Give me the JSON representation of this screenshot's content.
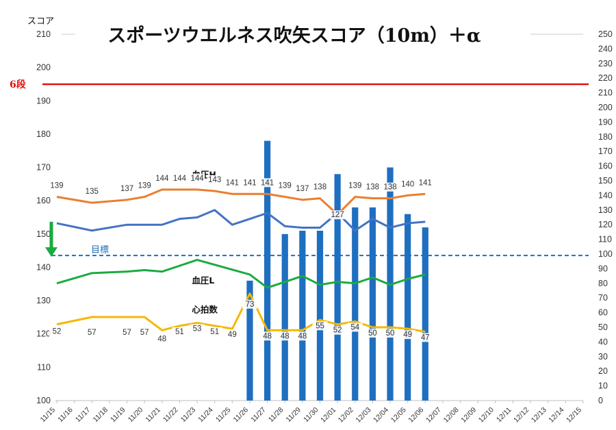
{
  "chart_data": {
    "type": "bar+line",
    "title": "スポーツウエルネス吹矢スコア（10m）＋α",
    "y_left_unit": "スコア",
    "y_left_range": [
      100,
      210
    ],
    "y_left_ticks": [
      100,
      110,
      120,
      130,
      140,
      150,
      160,
      170,
      180,
      190,
      200,
      210
    ],
    "y_right_range": [
      0,
      250
    ],
    "y_right_ticks": [
      0,
      10,
      20,
      30,
      40,
      50,
      60,
      70,
      80,
      90,
      100,
      110,
      120,
      130,
      140,
      150,
      160,
      170,
      180,
      190,
      200,
      210,
      220,
      230,
      240,
      250
    ],
    "categories": [
      "11/15",
      "11/16",
      "11/17",
      "11/18",
      "11/19",
      "11/20",
      "11/21",
      "11/22",
      "11/23",
      "11/24",
      "11/25",
      "11/26",
      "11/27",
      "11/28",
      "11/29",
      "11/30",
      "12/01",
      "12/02",
      "12/03",
      "12/04",
      "12/05",
      "12/06",
      "12/07",
      "12/08",
      "12/09",
      "12/10",
      "12/11",
      "12/12",
      "12/13",
      "12/14",
      "12/15"
    ],
    "score_bars": {
      "color": "#1f6fc0",
      "points": [
        {
          "x": "11/26",
          "y": 136
        },
        {
          "x": "11/27",
          "y": 178
        },
        {
          "x": "11/28",
          "y": 150
        },
        {
          "x": "11/29",
          "y": 151
        },
        {
          "x": "11/30",
          "y": 151
        },
        {
          "x": "12/01",
          "y": 168
        },
        {
          "x": "12/02",
          "y": 158
        },
        {
          "x": "12/03",
          "y": 158
        },
        {
          "x": "12/04",
          "y": 170
        },
        {
          "x": "12/05",
          "y": 156
        },
        {
          "x": "12/06",
          "y": 152
        }
      ]
    },
    "reference_lines": [
      {
        "label": "6段",
        "axis": "left",
        "value": 195,
        "color": "#e01010",
        "style": "solid"
      },
      {
        "label": "目標",
        "axis": "right",
        "value": 99,
        "color": "#1f6fb8",
        "style": "dashed"
      }
    ],
    "series": [
      {
        "name": "血圧H",
        "axis": "right",
        "color": "#ed7d31",
        "show_labels": true,
        "points": [
          {
            "x": "11/15",
            "y": 139,
            "label": "139"
          },
          {
            "x": "11/17",
            "y": 135,
            "label": "135"
          },
          {
            "x": "11/19",
            "y": 137,
            "label": "137"
          },
          {
            "x": "11/20",
            "y": 139,
            "label": "139"
          },
          {
            "x": "11/21",
            "y": 144,
            "label": "144"
          },
          {
            "x": "11/22",
            "y": 144,
            "label": "144"
          },
          {
            "x": "11/23",
            "y": 144,
            "label": "144"
          },
          {
            "x": "11/24",
            "y": 143,
            "label": "143"
          },
          {
            "x": "11/25",
            "y": 141,
            "label": "141"
          },
          {
            "x": "11/26",
            "y": 141,
            "label": "141"
          },
          {
            "x": "11/27",
            "y": 141,
            "label": "141"
          },
          {
            "x": "11/28",
            "y": 139,
            "label": "139"
          },
          {
            "x": "11/29",
            "y": 137,
            "label": "137"
          },
          {
            "x": "11/30",
            "y": 138,
            "label": "138"
          },
          {
            "x": "12/01",
            "y": 127,
            "label": "127"
          },
          {
            "x": "12/02",
            "y": 139,
            "label": "139"
          },
          {
            "x": "12/03",
            "y": 138,
            "label": "138"
          },
          {
            "x": "12/04",
            "y": 138,
            "label": "138"
          },
          {
            "x": "12/05",
            "y": 140,
            "label": "140"
          },
          {
            "x": "12/06",
            "y": 141,
            "label": "141"
          }
        ]
      },
      {
        "name": "",
        "axis": "right",
        "color": "#4472c4",
        "show_labels": false,
        "points": [
          {
            "x": "11/15",
            "y": 121
          },
          {
            "x": "11/17",
            "y": 116
          },
          {
            "x": "11/19",
            "y": 120
          },
          {
            "x": "11/20",
            "y": 120
          },
          {
            "x": "11/21",
            "y": 120
          },
          {
            "x": "11/22",
            "y": 124
          },
          {
            "x": "11/23",
            "y": 125
          },
          {
            "x": "11/24",
            "y": 130
          },
          {
            "x": "11/25",
            "y": 120
          },
          {
            "x": "11/26",
            "y": 124
          },
          {
            "x": "11/27",
            "y": 128
          },
          {
            "x": "11/28",
            "y": 119
          },
          {
            "x": "11/29",
            "y": 118
          },
          {
            "x": "11/30",
            "y": 118
          },
          {
            "x": "12/01",
            "y": 128
          },
          {
            "x": "12/02",
            "y": 116
          },
          {
            "x": "12/03",
            "y": 124
          },
          {
            "x": "12/04",
            "y": 118
          },
          {
            "x": "12/05",
            "y": 121
          },
          {
            "x": "12/06",
            "y": 122
          }
        ]
      },
      {
        "name": "血圧L",
        "axis": "right",
        "color": "#1aab40",
        "show_labels": false,
        "points": [
          {
            "x": "11/15",
            "y": 80
          },
          {
            "x": "11/17",
            "y": 87
          },
          {
            "x": "11/19",
            "y": 88
          },
          {
            "x": "11/20",
            "y": 89
          },
          {
            "x": "11/21",
            "y": 88
          },
          {
            "x": "11/23",
            "y": 96
          },
          {
            "x": "11/26",
            "y": 86
          },
          {
            "x": "11/27",
            "y": 77
          },
          {
            "x": "11/28",
            "y": 81
          },
          {
            "x": "11/29",
            "y": 85
          },
          {
            "x": "11/30",
            "y": 79
          },
          {
            "x": "12/01",
            "y": 81
          },
          {
            "x": "12/02",
            "y": 80
          },
          {
            "x": "12/03",
            "y": 84
          },
          {
            "x": "12/04",
            "y": 79
          },
          {
            "x": "12/05",
            "y": 83
          },
          {
            "x": "12/06",
            "y": 86
          }
        ]
      },
      {
        "name": "心拍数",
        "axis": "right",
        "color": "#f5b800",
        "show_labels": true,
        "points": [
          {
            "x": "11/15",
            "y": 52,
            "label": "52"
          },
          {
            "x": "11/17",
            "y": 57,
            "label": "57"
          },
          {
            "x": "11/19",
            "y": 57,
            "label": "57"
          },
          {
            "x": "11/20",
            "y": 57,
            "label": "57"
          },
          {
            "x": "11/21",
            "y": 48,
            "label": "48"
          },
          {
            "x": "11/22",
            "y": 51,
            "label": "51"
          },
          {
            "x": "11/23",
            "y": 53,
            "label": "53"
          },
          {
            "x": "11/24",
            "y": 51,
            "label": "51"
          },
          {
            "x": "11/25",
            "y": 49,
            "label": "49"
          },
          {
            "x": "11/26",
            "y": 73,
            "label": "73"
          },
          {
            "x": "11/27",
            "y": 48,
            "label": "48"
          },
          {
            "x": "11/28",
            "y": 48,
            "label": "48"
          },
          {
            "x": "11/29",
            "y": 48,
            "label": "48"
          },
          {
            "x": "11/30",
            "y": 55,
            "label": "55"
          },
          {
            "x": "12/01",
            "y": 52,
            "label": "52"
          },
          {
            "x": "12/02",
            "y": 54,
            "label": "54"
          },
          {
            "x": "12/03",
            "y": 50,
            "label": "50"
          },
          {
            "x": "12/04",
            "y": 50,
            "label": "50"
          },
          {
            "x": "12/05",
            "y": 49,
            "label": "49"
          },
          {
            "x": "12/06",
            "y": 47,
            "label": "47"
          }
        ]
      }
    ],
    "annotations": [
      {
        "type": "arrow",
        "color": "#1aab40",
        "axis": "right",
        "x": "11/15",
        "from": 122,
        "to": 99
      }
    ],
    "grid": false
  }
}
